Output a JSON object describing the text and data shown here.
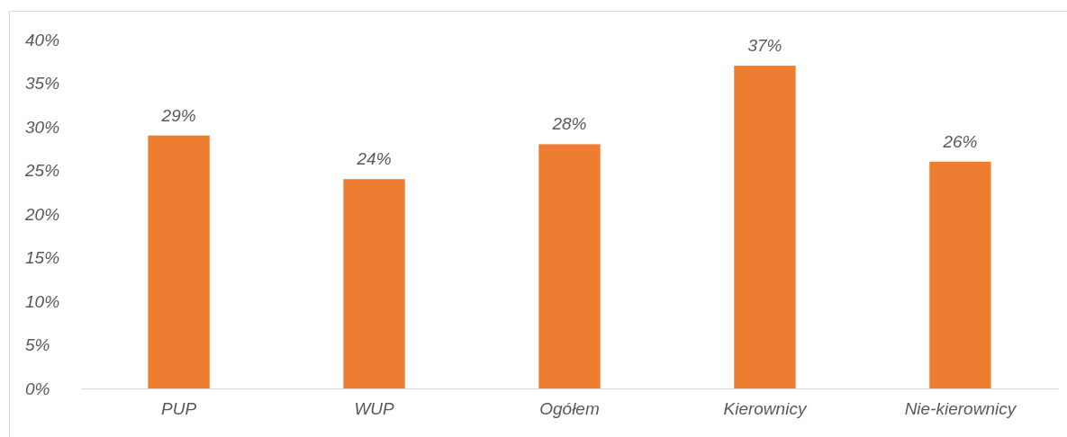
{
  "chart_data": {
    "type": "bar",
    "categories": [
      "PUP",
      "WUP",
      "Ogółem",
      "Kierownicy",
      "Nie-kierownicy"
    ],
    "values": [
      29,
      24,
      28,
      37,
      26
    ],
    "color": "#ed7d31",
    "value_labels": [
      "29%",
      "24%",
      "28%",
      "37%",
      "26%"
    ],
    "ylim": [
      0,
      40
    ],
    "yticks": [
      {
        "value": 0,
        "label": "0%"
      },
      {
        "value": 5,
        "label": "5%"
      },
      {
        "value": 10,
        "label": "10%"
      },
      {
        "value": 15,
        "label": "15%"
      },
      {
        "value": 20,
        "label": "20%"
      },
      {
        "value": 25,
        "label": "25%"
      },
      {
        "value": 30,
        "label": "30%"
      },
      {
        "value": 35,
        "label": "35%"
      },
      {
        "value": 40,
        "label": "40%"
      }
    ]
  }
}
